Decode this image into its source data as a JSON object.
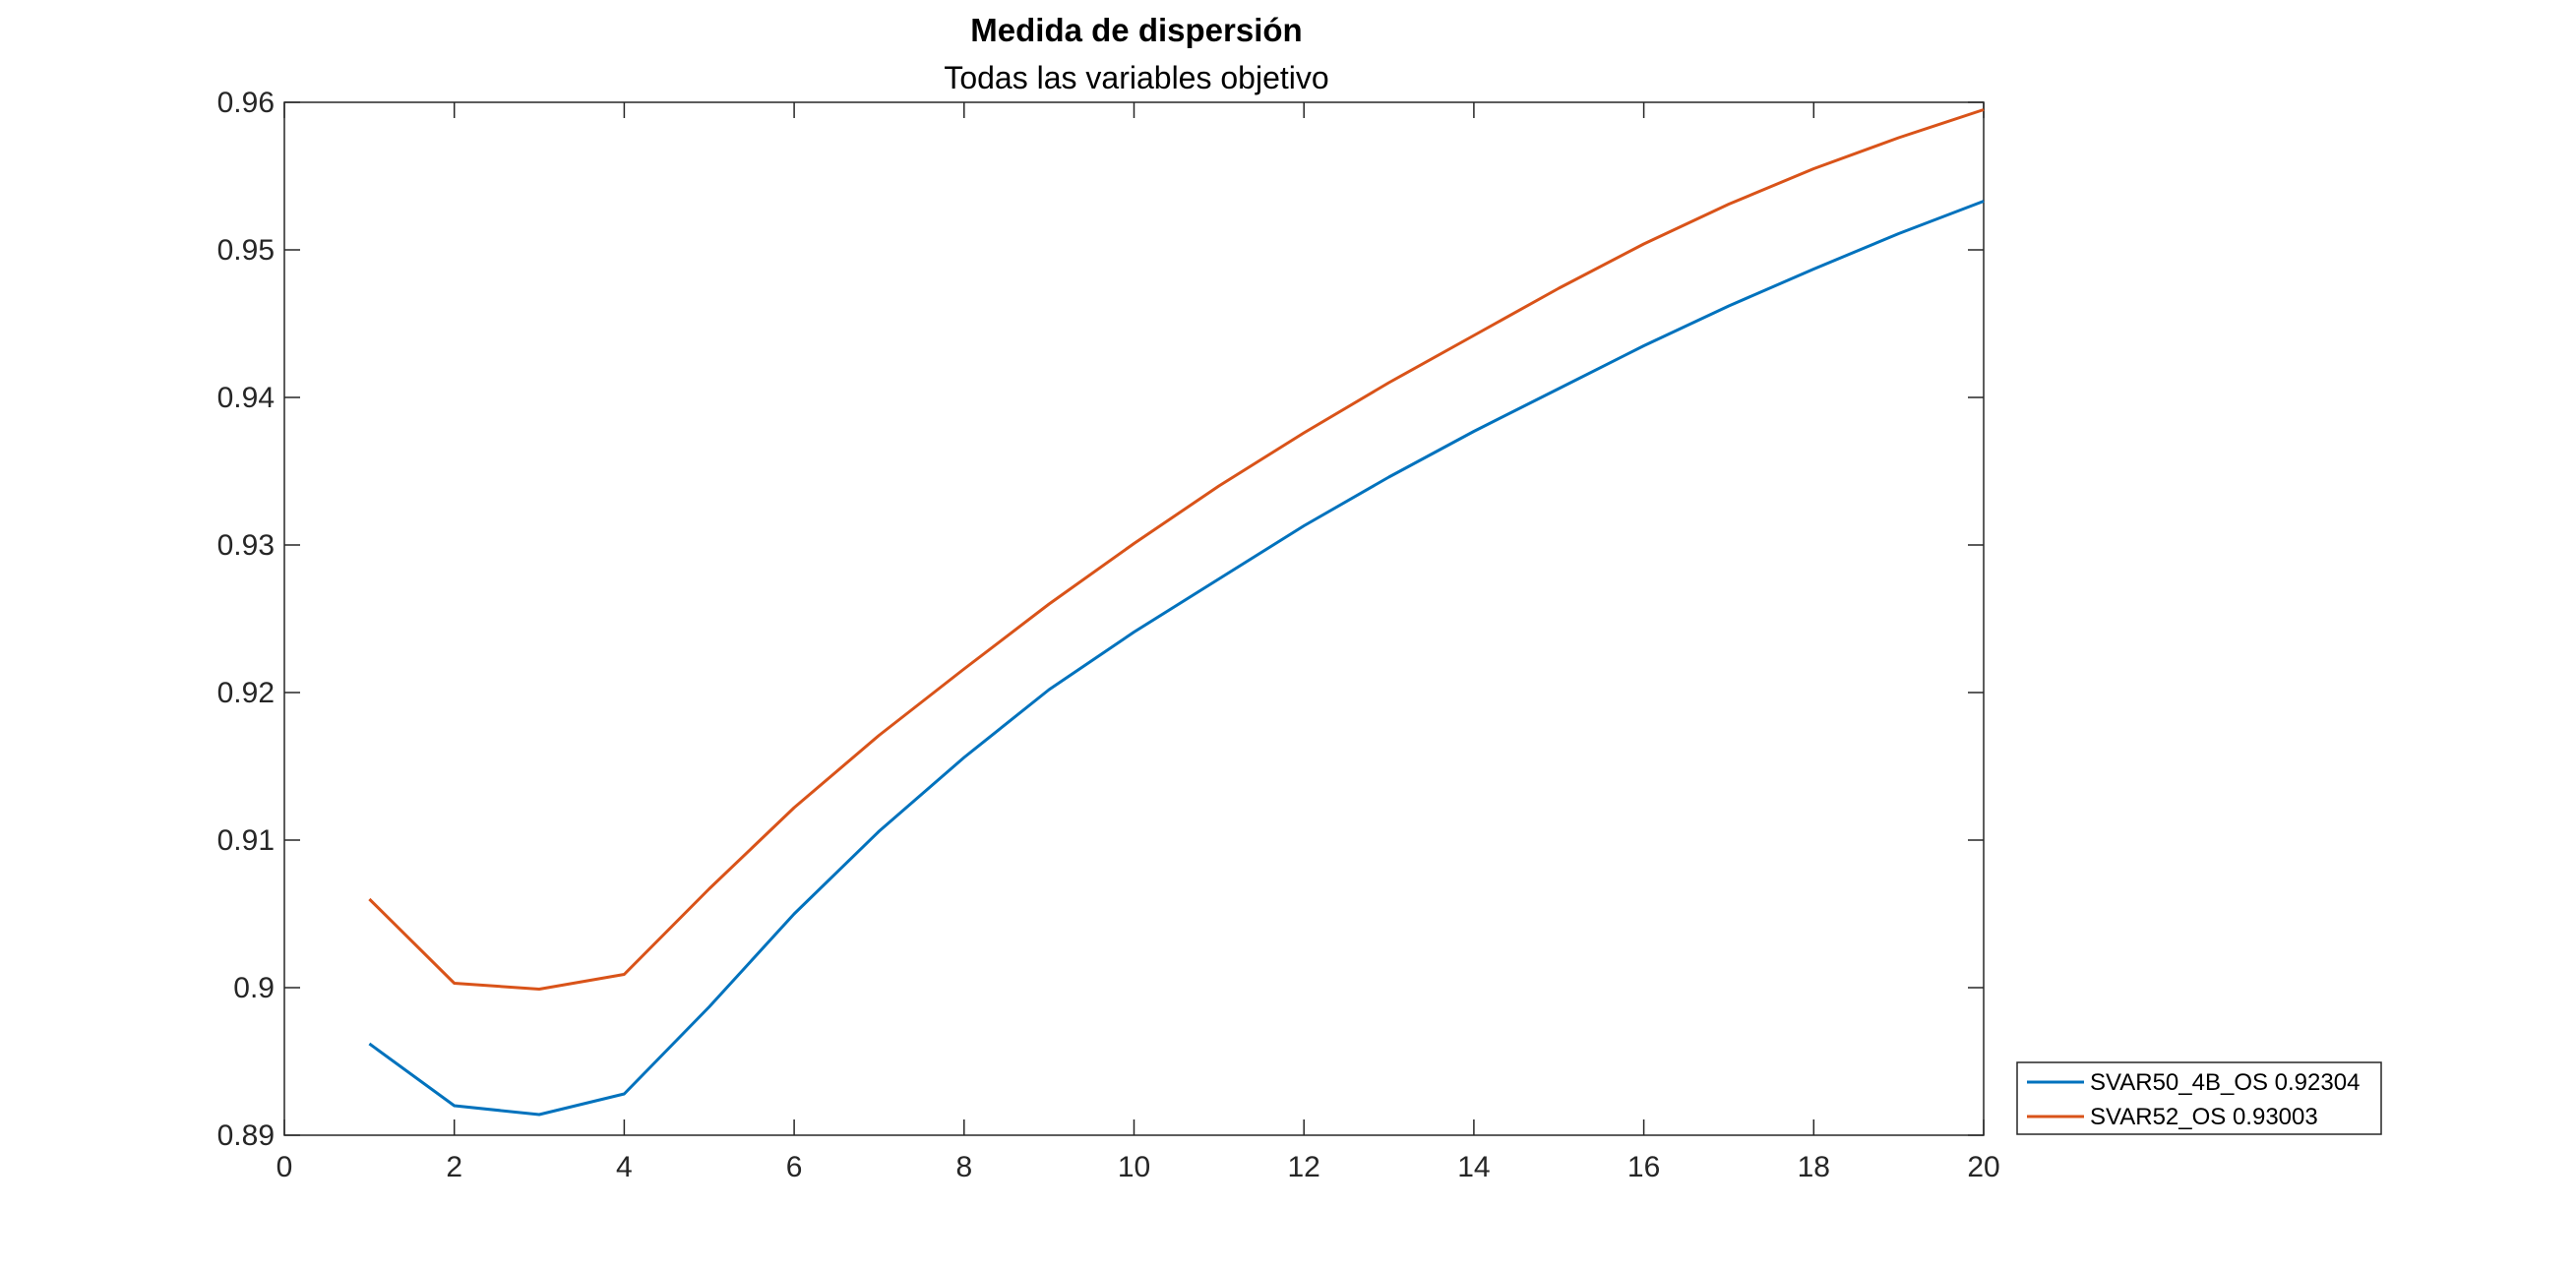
{
  "chart_data": {
    "type": "line",
    "title": "Medida de dispersión",
    "subtitle": "Todas las variables objetivo",
    "xlabel": "",
    "ylabel": "",
    "xlim": [
      0,
      20
    ],
    "ylim": [
      0.89,
      0.96
    ],
    "x_ticks": [
      0,
      2,
      4,
      6,
      8,
      10,
      12,
      14,
      16,
      18,
      20
    ],
    "x_tick_labels": [
      "0",
      "2",
      "4",
      "6",
      "8",
      "10",
      "12",
      "14",
      "16",
      "18",
      "20"
    ],
    "y_ticks": [
      0.89,
      0.9,
      0.91,
      0.92,
      0.93,
      0.94,
      0.95,
      0.96
    ],
    "y_tick_labels": [
      "0.89",
      "0.9",
      "0.91",
      "0.92",
      "0.93",
      "0.94",
      "0.95",
      "0.96"
    ],
    "grid": false,
    "legend_position": "outside-bottom-right",
    "x": [
      1,
      2,
      3,
      4,
      5,
      6,
      7,
      8,
      9,
      10,
      11,
      12,
      13,
      14,
      15,
      16,
      17,
      18,
      19,
      20
    ],
    "series": [
      {
        "name": "SVAR50_4B_OS 0.92304",
        "color": "#0072BD",
        "values": [
          0.8962,
          0.892,
          0.8914,
          0.8928,
          0.8987,
          0.905,
          0.9106,
          0.9156,
          0.9202,
          0.9241,
          0.9277,
          0.9313,
          0.9346,
          0.9377,
          0.9406,
          0.9435,
          0.9462,
          0.9487,
          0.9511,
          0.9533
        ]
      },
      {
        "name": "SVAR52_OS 0.93003",
        "color": "#D95319",
        "values": [
          0.906,
          0.9003,
          0.8999,
          0.9009,
          0.9067,
          0.9122,
          0.9171,
          0.9216,
          0.926,
          0.9301,
          0.934,
          0.9376,
          0.941,
          0.9442,
          0.9474,
          0.9504,
          0.9531,
          0.9555,
          0.9576,
          0.9595
        ]
      }
    ]
  }
}
